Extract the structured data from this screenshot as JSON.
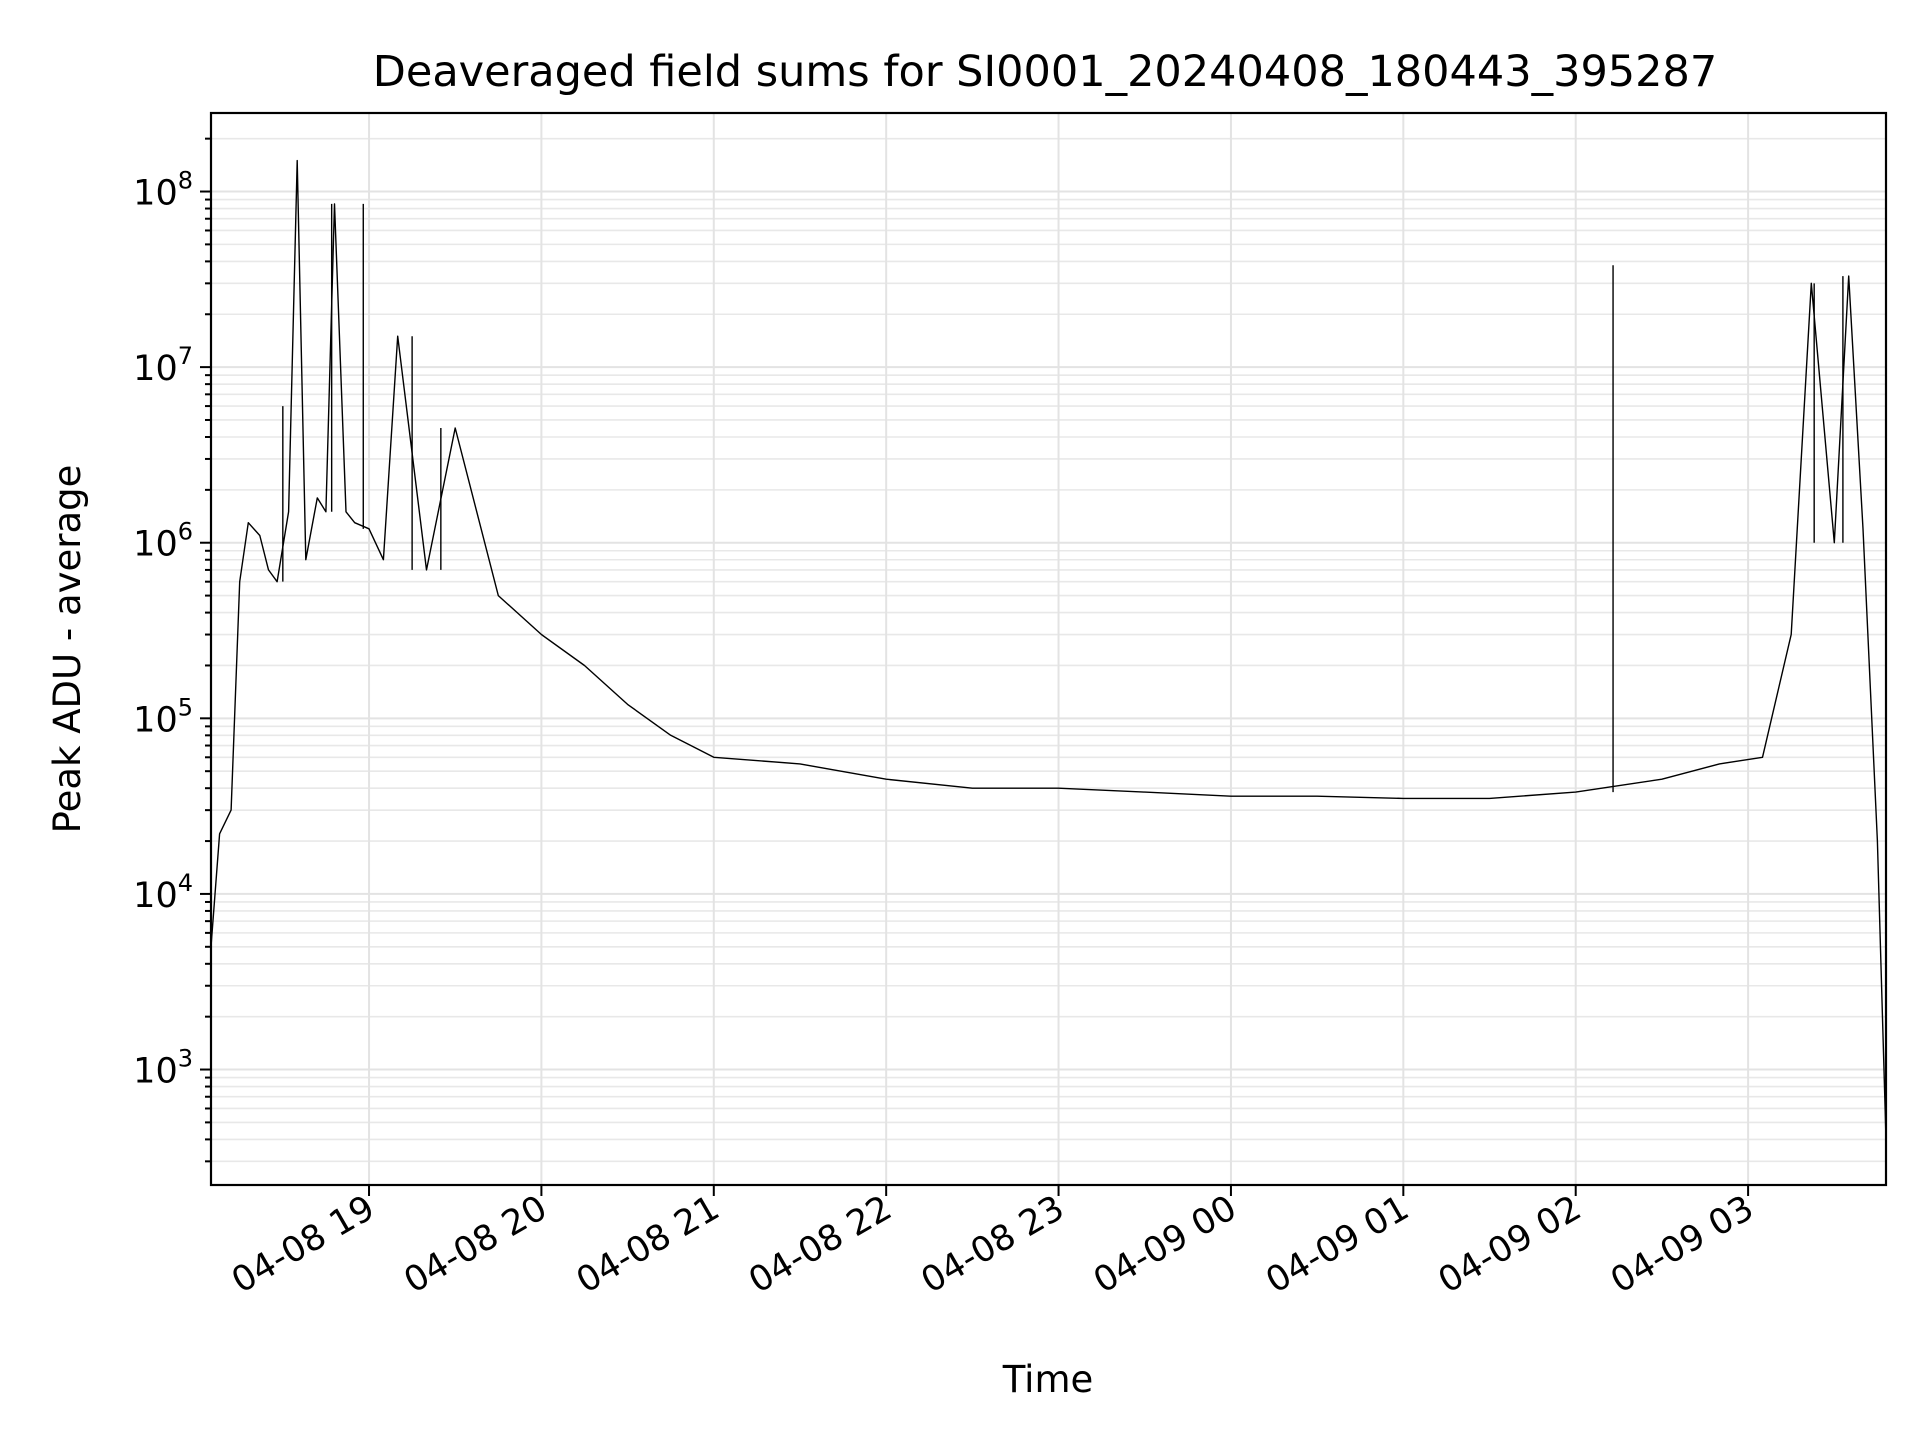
{
  "chart_data": {
    "type": "line",
    "title": "Deaveraged field sums for SI0001_20240408_180443_395287",
    "xlabel": "Time",
    "ylabel": "Peak ADU - average",
    "yscale": "log",
    "ylim": [
      220,
      280000000
    ],
    "xlim": [
      "2024-04-08 18:05",
      "2024-04-09 03:48"
    ],
    "grid": true,
    "x_ticks": [
      "2024-04-08 19:00",
      "2024-04-08 20:00",
      "2024-04-08 21:00",
      "2024-04-08 22:00",
      "2024-04-08 23:00",
      "2024-04-09 00:00",
      "2024-04-09 01:00",
      "2024-04-09 02:00",
      "2024-04-09 03:00"
    ],
    "x_tick_labels": [
      "04-08 19",
      "04-08 20",
      "04-08 21",
      "04-08 22",
      "04-08 23",
      "04-09 00",
      "04-09 01",
      "04-09 02",
      "04-09 03"
    ],
    "y_ticks": [
      1000,
      10000,
      100000,
      1000000,
      10000000,
      100000000
    ],
    "y_tick_labels": [
      {
        "base": "10",
        "exp": "3"
      },
      {
        "base": "10",
        "exp": "4"
      },
      {
        "base": "10",
        "exp": "5"
      },
      {
        "base": "10",
        "exp": "6"
      },
      {
        "base": "10",
        "exp": "7"
      },
      {
        "base": "10",
        "exp": "8"
      }
    ],
    "series": [
      {
        "color": "#000000",
        "x": [
          "2024-04-08 18:05",
          "2024-04-08 18:08",
          "2024-04-08 18:12",
          "2024-04-08 18:15",
          "2024-04-08 18:18",
          "2024-04-08 18:22",
          "2024-04-08 18:25",
          "2024-04-08 18:28",
          "2024-04-08 18:32",
          "2024-04-08 18:35",
          "2024-04-08 18:38",
          "2024-04-08 18:42",
          "2024-04-08 18:45",
          "2024-04-08 18:48",
          "2024-04-08 18:52",
          "2024-04-08 18:55",
          "2024-04-08 19:00",
          "2024-04-08 19:05",
          "2024-04-08 19:10",
          "2024-04-08 19:20",
          "2024-04-08 19:30",
          "2024-04-08 19:45",
          "2024-04-08 20:00",
          "2024-04-08 20:15",
          "2024-04-08 20:30",
          "2024-04-08 20:45",
          "2024-04-08 21:00",
          "2024-04-08 21:30",
          "2024-04-08 22:00",
          "2024-04-08 22:30",
          "2024-04-08 23:00",
          "2024-04-08 23:30",
          "2024-04-09 00:00",
          "2024-04-09 00:30",
          "2024-04-09 01:00",
          "2024-04-09 01:30",
          "2024-04-09 02:00",
          "2024-04-09 02:30",
          "2024-04-09 02:50",
          "2024-04-09 03:05",
          "2024-04-09 03:15",
          "2024-04-09 03:22",
          "2024-04-09 03:30",
          "2024-04-09 03:35",
          "2024-04-09 03:40",
          "2024-04-09 03:45",
          "2024-04-09 03:48"
        ],
        "y": [
          5000,
          22000,
          30000,
          600000,
          1300000,
          1100000,
          700000,
          600000,
          1500000,
          150000000,
          800000,
          1800000,
          1500000,
          85000000,
          1500000,
          1300000,
          1200000,
          800000,
          15000000,
          700000,
          4500000,
          500000,
          300000,
          200000,
          120000,
          80000,
          60000,
          55000,
          45000,
          40000,
          40000,
          38000,
          36000,
          36000,
          35000,
          35000,
          38000,
          45000,
          55000,
          60000,
          300000,
          30000000,
          1000000,
          33000000,
          1200000,
          20000,
          400
        ]
      }
    ],
    "spikes": [
      {
        "x": "2024-04-08 18:47",
        "y": 85000000
      },
      {
        "x": "2024-04-08 18:58",
        "y": 85000000
      },
      {
        "x": "2024-04-08 19:15",
        "y": 15000000
      },
      {
        "x": "2024-04-08 19:25",
        "y": 4500000
      },
      {
        "x": "2024-04-08 18:30",
        "y": 6000000
      },
      {
        "x": "2024-04-09 02:13",
        "y": 38000000
      },
      {
        "x": "2024-04-09 03:23",
        "y": 30000000
      },
      {
        "x": "2024-04-09 03:33",
        "y": 33000000
      }
    ]
  }
}
